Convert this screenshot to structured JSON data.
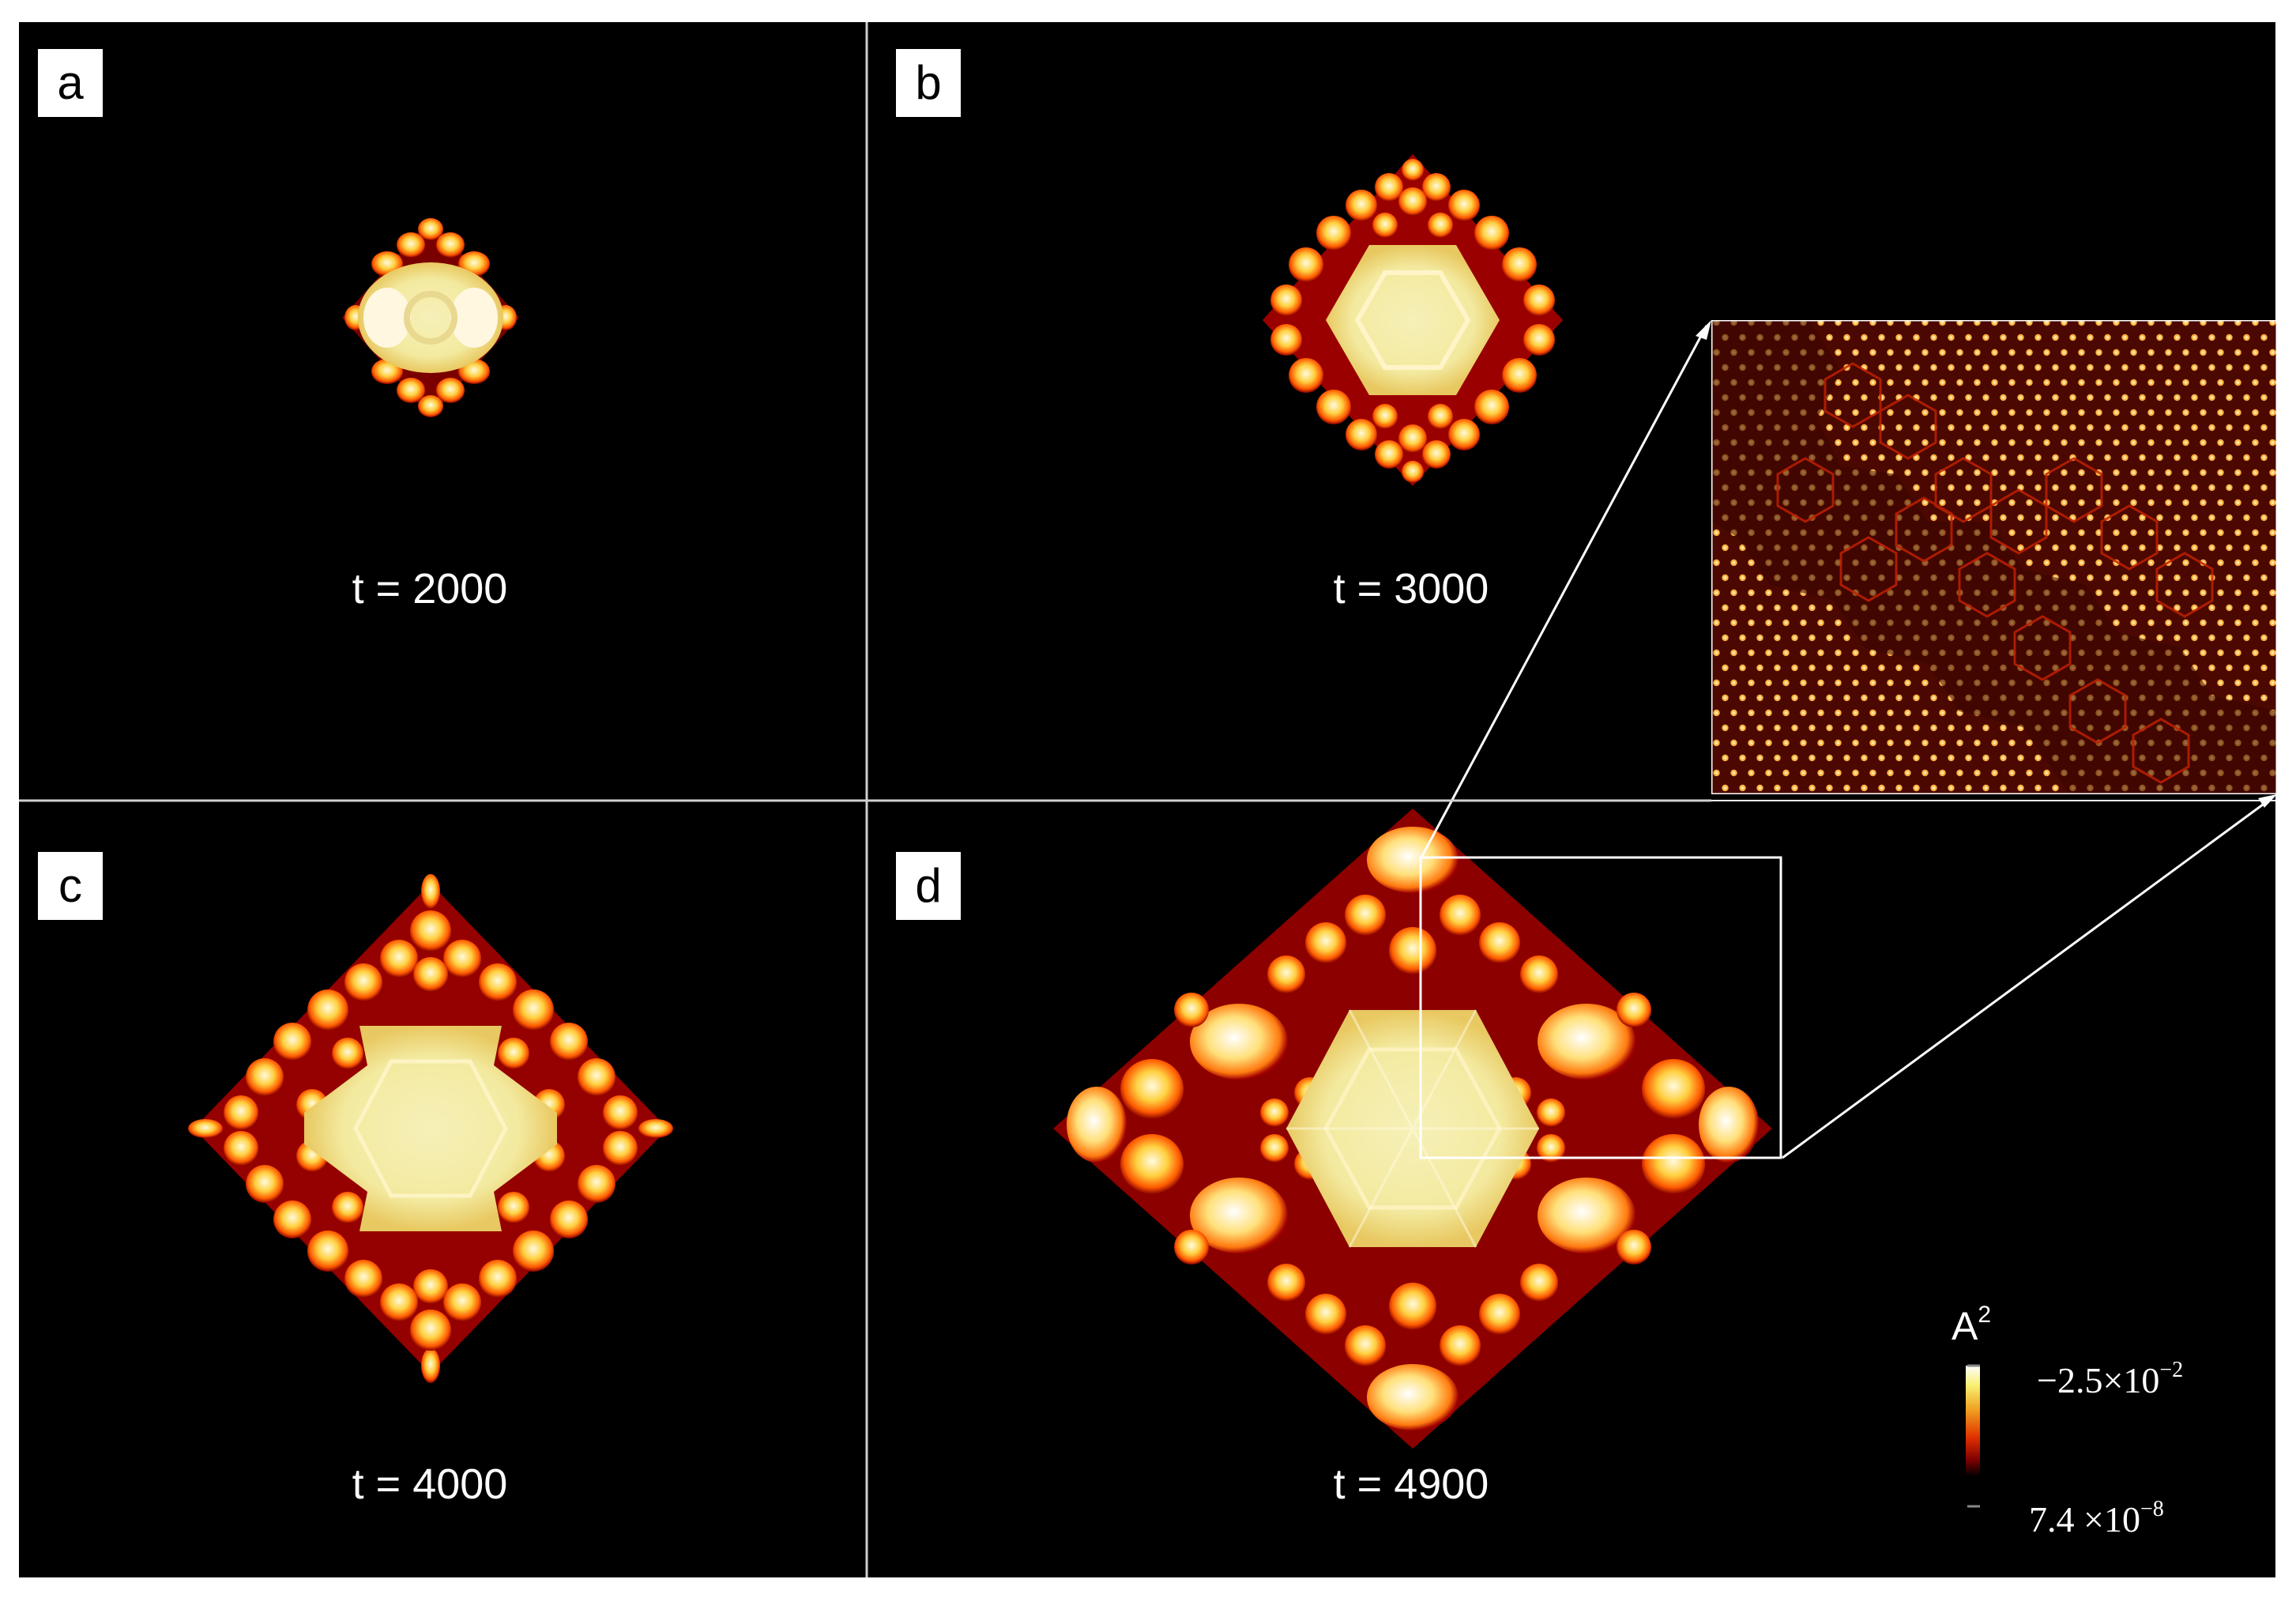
{
  "panels": [
    {
      "letter": "a",
      "time": "t = 2000"
    },
    {
      "letter": "b",
      "time": "t = 3000"
    },
    {
      "letter": "c",
      "time": "t = 4000"
    },
    {
      "letter": "d",
      "time": "t = 4900"
    }
  ],
  "colorbar": {
    "title": "A",
    "title_exponent": "2",
    "max_mantissa": "−2.5×10",
    "max_exponent": "−2",
    "min_mantissa": "7.4 ×10",
    "min_exponent": "−8",
    "colors": [
      "#ffffff",
      "#f7f070",
      "#f0a020",
      "#e03000",
      "#800000",
      "#000000"
    ]
  },
  "colors": {
    "background": "#000000",
    "divider": "#cfcfcf",
    "hot_dark": "#b00000",
    "hot_mid": "#ff6a00",
    "hot_light": "#ffe070",
    "hot_white": "#fffbd8"
  }
}
